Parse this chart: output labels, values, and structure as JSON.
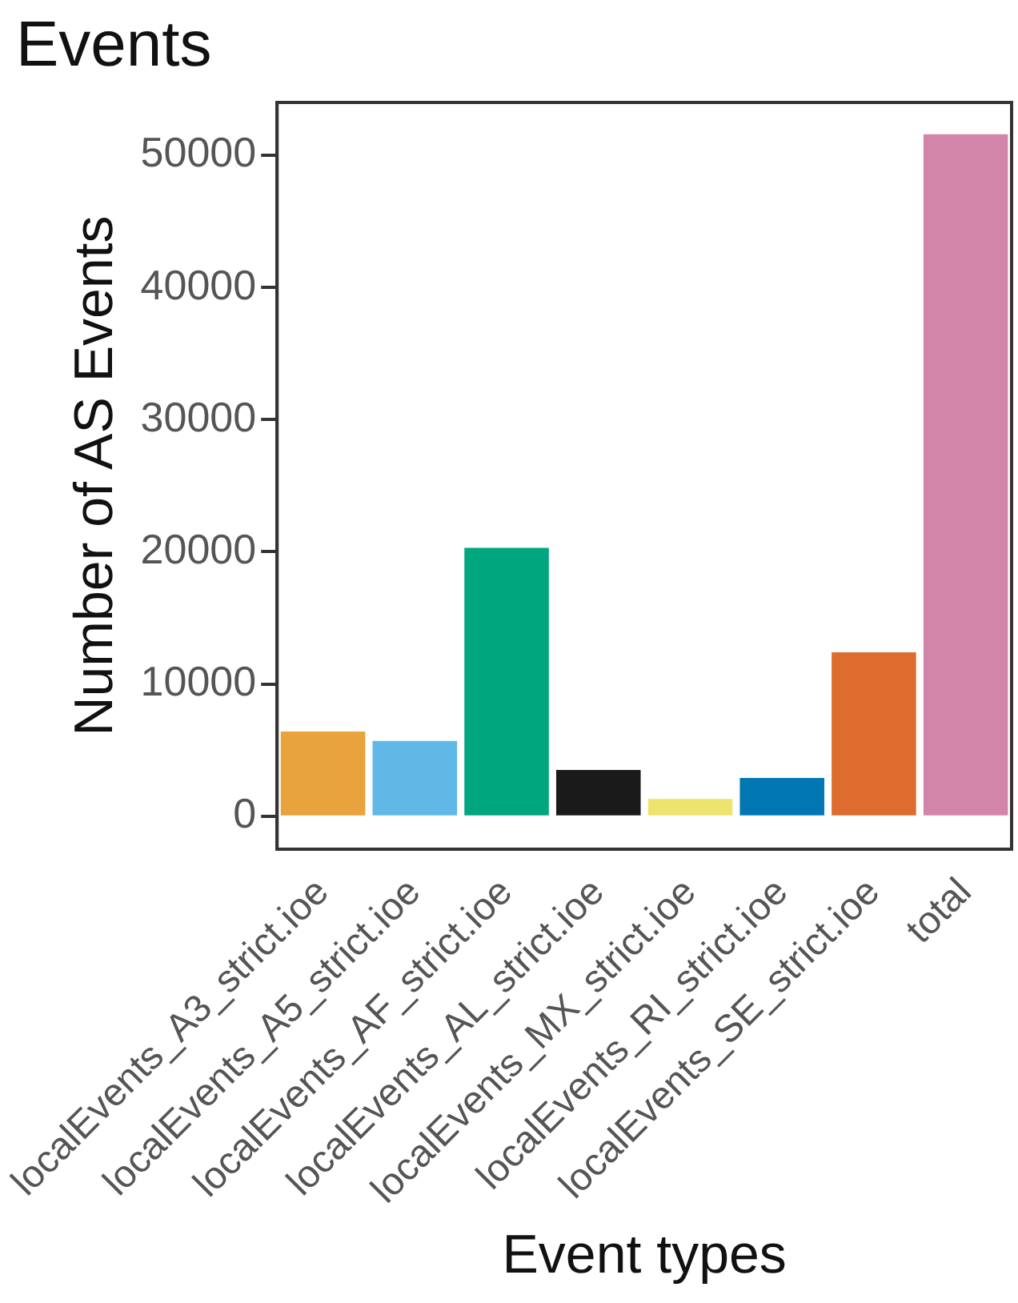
{
  "chart_data": {
    "type": "bar",
    "title": "Events",
    "xlabel": "Event types",
    "ylabel": "Number of AS Events",
    "categories": [
      "localEvents_A3_strict.ioe",
      "localEvents_A5_strict.ioe",
      "localEvents_AF_strict.ioe",
      "localEvents_AL_strict.ioe",
      "localEvents_MX_strict.ioe",
      "localEvents_RI_strict.ioe",
      "localEvents_SE_strict.ioe",
      "total"
    ],
    "values": [
      6400,
      5700,
      20300,
      3500,
      1300,
      2900,
      12400,
      51600
    ],
    "colors": [
      "#e8a33d",
      "#5fb8e6",
      "#00a67e",
      "#1a1a1a",
      "#ede46e",
      "#0077b3",
      "#dd6c2e",
      "#d384a9"
    ],
    "ylim": [
      -2500,
      54000
    ],
    "yticks": [
      0,
      10000,
      20000,
      30000,
      40000,
      50000
    ],
    "grid": false,
    "legend": false
  }
}
